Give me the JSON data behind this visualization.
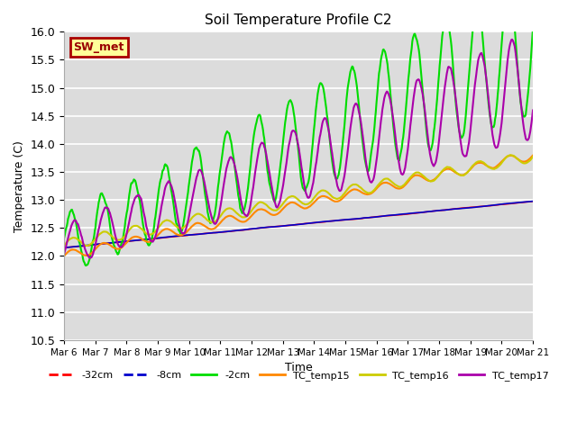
{
  "title": "Soil Temperature Profile C2",
  "xlabel": "Time",
  "ylabel": "Temperature (C)",
  "ylim": [
    10.5,
    16.0
  ],
  "yticks": [
    10.5,
    11.0,
    11.5,
    12.0,
    12.5,
    13.0,
    13.5,
    14.0,
    14.5,
    15.0,
    15.5,
    16.0
  ],
  "bg_color": "#dcdcdc",
  "annotation_text": "SW_met",
  "annotation_bg": "#ffff99",
  "annotation_border": "#aa0000",
  "series": {
    "-32cm": {
      "color": "#ff0000",
      "lw": 1.2
    },
    "-8cm": {
      "color": "#0000cc",
      "lw": 1.2
    },
    "-2cm": {
      "color": "#00dd00",
      "lw": 1.5
    },
    "TC_temp15": {
      "color": "#ff8800",
      "lw": 1.5
    },
    "TC_temp16": {
      "color": "#cccc00",
      "lw": 1.5
    },
    "TC_temp17": {
      "color": "#aa00aa",
      "lw": 1.5
    }
  },
  "legend_order": [
    "-32cm",
    "-8cm",
    "-2cm",
    "TC_temp15",
    "TC_temp16",
    "TC_temp17"
  ],
  "x_tick_labels": [
    "Mar 6",
    "Mar 7",
    "Mar 8",
    "Mar 9",
    "Mar 10",
    "Mar 11",
    "Mar 12",
    "Mar 13",
    "Mar 14",
    "Mar 15",
    "Mar 16",
    "Mar 17",
    "Mar 18",
    "Mar 19",
    "Mar 20",
    "Mar 21"
  ],
  "num_days": 15,
  "pts_per_day": 48
}
